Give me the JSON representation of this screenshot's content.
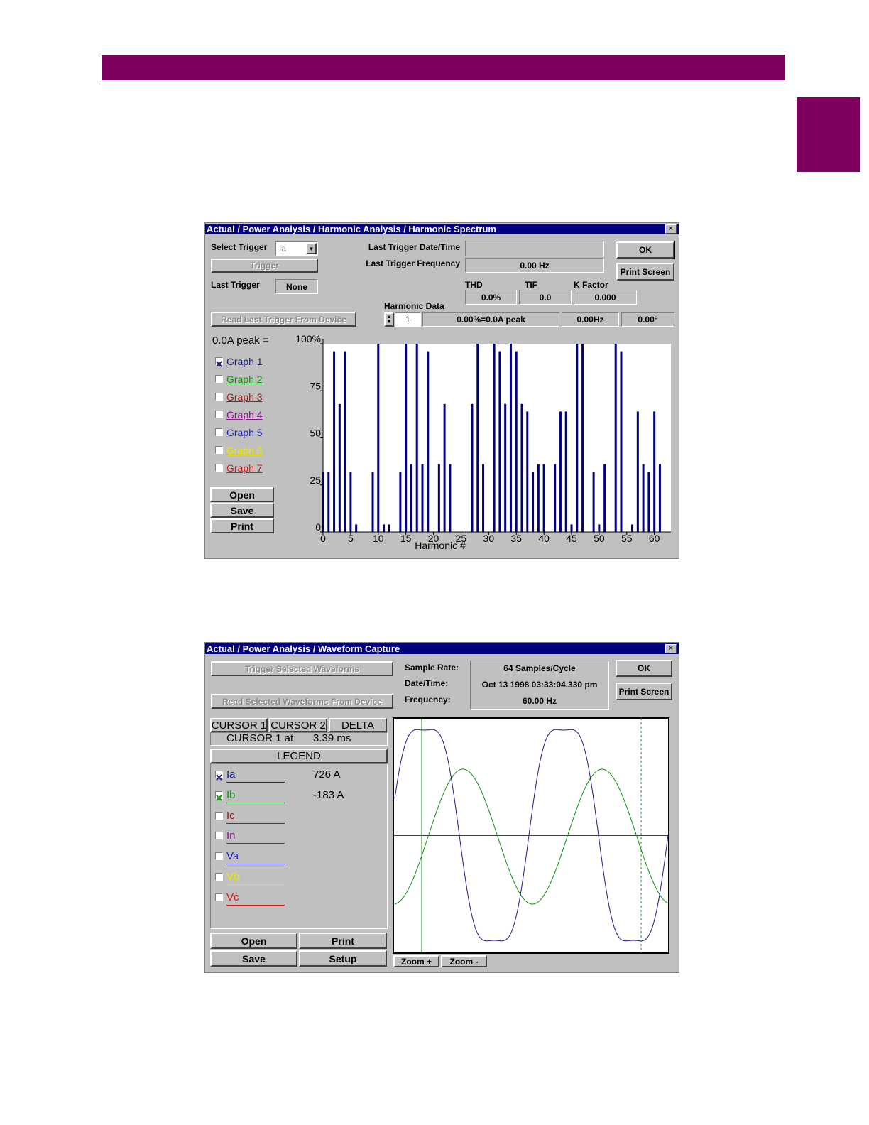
{
  "harmonic_window": {
    "title": "Actual / Power Analysis / Harmonic Analysis / Harmonic Spectrum",
    "select_trigger_label": "Select Trigger",
    "select_trigger_value": "Ia",
    "trigger_button": "Trigger",
    "last_trigger_label": "Last Trigger",
    "last_trigger_value": "None",
    "date_time_label": "Last Trigger Date/Time",
    "frequency_label": "Last Trigger Frequency",
    "frequency_value": "0.00 Hz",
    "ok_button": "OK",
    "print_screen_button": "Print Screen",
    "thd_label": "THD",
    "thd_value": "0.0%",
    "tif_label": "TIF",
    "tif_value": "0.0",
    "k_factor_label": "K Factor",
    "k_factor_value": "0.000",
    "read_button": "Read Last Trigger From Device",
    "harmonic_data_label": "Harmonic Data",
    "harmonic_number": "1",
    "harmonic_magnitude": "0.00%=0.0A peak",
    "harmonic_frequency": "0.00Hz",
    "harmonic_angle": "0.00°",
    "peak_label": "0.0A peak =",
    "graphs": [
      {
        "label": "Graph 1",
        "color": "#1c1c8c",
        "checked": true
      },
      {
        "label": "Graph 2",
        "color": "#129012",
        "checked": false
      },
      {
        "label": "Graph 3",
        "color": "#a01818",
        "checked": false
      },
      {
        "label": "Graph 4",
        "color": "#8c148c",
        "checked": false
      },
      {
        "label": "Graph 5",
        "color": "#2424d0",
        "checked": false
      },
      {
        "label": "Graph 6",
        "color": "#e8e800",
        "checked": false
      },
      {
        "label": "Graph 7",
        "color": "#e01010",
        "checked": false
      }
    ],
    "buttons": [
      "Open",
      "Save",
      "Print"
    ]
  },
  "chart_data": {
    "type": "bar",
    "x_label": "Harmonic #",
    "x": [
      0,
      1,
      2,
      3,
      4,
      5,
      6,
      7,
      8,
      9,
      10,
      11,
      12,
      13,
      14,
      15,
      16,
      17,
      18,
      19,
      20,
      21,
      22,
      23,
      24,
      25,
      26,
      27,
      28,
      29,
      30,
      31,
      32,
      33,
      34,
      35,
      36,
      37,
      38,
      39,
      40,
      41,
      42,
      43,
      44,
      45,
      46,
      47,
      48,
      49,
      50,
      51,
      52,
      53,
      54,
      55,
      56,
      57,
      58,
      59,
      60,
      61,
      62
    ],
    "values": [
      32,
      32,
      96,
      68,
      96,
      32,
      4,
      0,
      0,
      32,
      100,
      4,
      4,
      0,
      32,
      100,
      36,
      100,
      36,
      96,
      0,
      36,
      68,
      36,
      0,
      0,
      0,
      68,
      100,
      36,
      0,
      100,
      96,
      68,
      100,
      96,
      68,
      64,
      32,
      36,
      36,
      0,
      36,
      64,
      64,
      4,
      100,
      100,
      0,
      32,
      4,
      36,
      0,
      100,
      96,
      0,
      4,
      64,
      36,
      32,
      64,
      36,
      0
    ],
    "color": "#000080",
    "xlim": [
      0,
      63
    ],
    "xticks": [
      0,
      5,
      10,
      15,
      20,
      25,
      30,
      35,
      40,
      45,
      50,
      55,
      60
    ],
    "ylim": [
      0,
      100
    ],
    "yticks": [
      0,
      25,
      50,
      75,
      {
        "value": 100,
        "label": "100%"
      }
    ],
    "grid": false
  },
  "waveform_window": {
    "title": "Actual / Power Analysis / Waveform Capture",
    "trigger_button": "Trigger Selected Waveforms",
    "read_button": "Read Selected Waveforms From Device",
    "sample_rate_label": "Sample Rate:",
    "sample_rate_value": "64 Samples/Cycle",
    "date_time_label": "Date/Time:",
    "date_time_value": "Oct 13  1998 03:33:04.330 pm",
    "frequency_label": "Frequency:",
    "frequency_value": "60.00 Hz",
    "ok_button": "OK",
    "print_screen_button": "Print Screen",
    "cursor_tabs": [
      "CURSOR 1",
      "CURSOR 2",
      "DELTA"
    ],
    "cursor_label": "CURSOR 1 at",
    "cursor_value": "3.39 ms",
    "legend_title": "LEGEND",
    "legend": [
      {
        "label": "Ia",
        "color": "#1c1c8c",
        "checked": true,
        "value": "726 A"
      },
      {
        "label": "Ib",
        "color": "#129012",
        "checked": true,
        "value": "-183 A"
      },
      {
        "label": "Ic",
        "color": "#a01818",
        "checked": false
      },
      {
        "label": "In",
        "color": "#8c148c",
        "checked": false
      },
      {
        "label": "Va",
        "color": "#2424d0",
        "checked": false
      },
      {
        "label": "Vb",
        "color": "#e8e800",
        "checked": false
      },
      {
        "label": "Vc",
        "color": "#e01010",
        "checked": false
      }
    ],
    "buttons": [
      "Open",
      "Print",
      "Save",
      "Setup"
    ],
    "zoom_buttons": [
      "Zoom +",
      "Zoom -"
    ]
  }
}
